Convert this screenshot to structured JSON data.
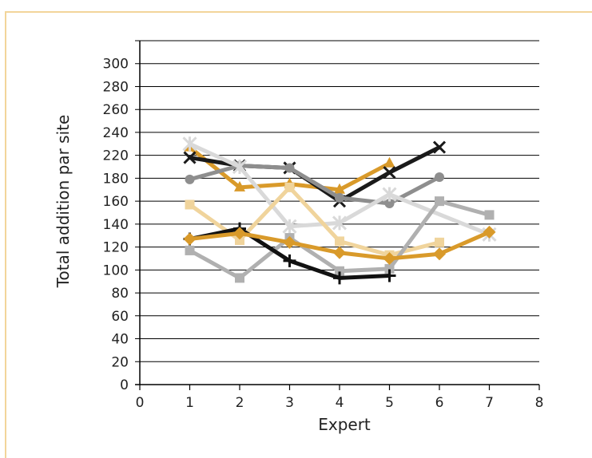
{
  "chart_data": {
    "type": "line",
    "title": "",
    "xlabel": "Expert",
    "ylabel": "Total addition par site",
    "xlim": [
      0,
      8
    ],
    "ylim": [
      0,
      300
    ],
    "x_ticks": [
      "0",
      "1",
      "2",
      "3",
      "4",
      "5",
      "6",
      "7",
      "8"
    ],
    "y_ticks": [
      "0",
      "20",
      "40",
      "60",
      "80",
      "100",
      "120",
      "140",
      "160",
      "180",
      "220",
      "240",
      "260",
      "280",
      "300"
    ],
    "grid": "horizontal",
    "legend": "none",
    "series": [
      {
        "marker": "triangle",
        "color": "#d99a2a",
        "x": [
          1,
          2,
          3,
          4,
          5
        ],
        "y": [
          207,
          172,
          175,
          170,
          193
        ]
      },
      {
        "marker": "x",
        "color": "#1a1a1a",
        "x": [
          1,
          2,
          3,
          4,
          5,
          6
        ],
        "y": [
          198,
          191,
          189,
          160,
          185,
          207
        ]
      },
      {
        "marker": "circle",
        "color": "#8e8e8e",
        "x": [
          1,
          2,
          3,
          4,
          5,
          6
        ],
        "y": [
          179,
          191,
          189,
          163,
          158,
          181
        ]
      },
      {
        "marker": "asterisk",
        "color": "#d9d9d9",
        "x": [
          1,
          2,
          3,
          4,
          5,
          6,
          7
        ],
        "y": [
          210,
          190,
          138,
          141,
          166,
          null,
          131
        ]
      },
      {
        "marker": "square",
        "color": "#f0d49c",
        "x": [
          1,
          2,
          3,
          4,
          5,
          6
        ],
        "y": [
          157,
          126,
          172,
          125,
          113,
          124
        ]
      },
      {
        "marker": "square",
        "color": "#b0b0b0",
        "x": [
          1,
          2,
          3,
          4,
          5,
          6,
          7
        ],
        "y": [
          117,
          93,
          128,
          99,
          101,
          160,
          148
        ]
      },
      {
        "marker": "plus",
        "color": "#111111",
        "x": [
          1,
          2,
          3,
          4,
          5
        ],
        "y": [
          127,
          136,
          108,
          93,
          95
        ]
      },
      {
        "marker": "diamond",
        "color": "#d99a2a",
        "x": [
          1,
          2,
          3,
          4,
          5,
          6,
          7
        ],
        "y": [
          127,
          132,
          124,
          115,
          110,
          114,
          133
        ]
      }
    ]
  },
  "colors": {
    "frame": "#f2d59a",
    "grid": "#000000",
    "axis": "#000000"
  }
}
